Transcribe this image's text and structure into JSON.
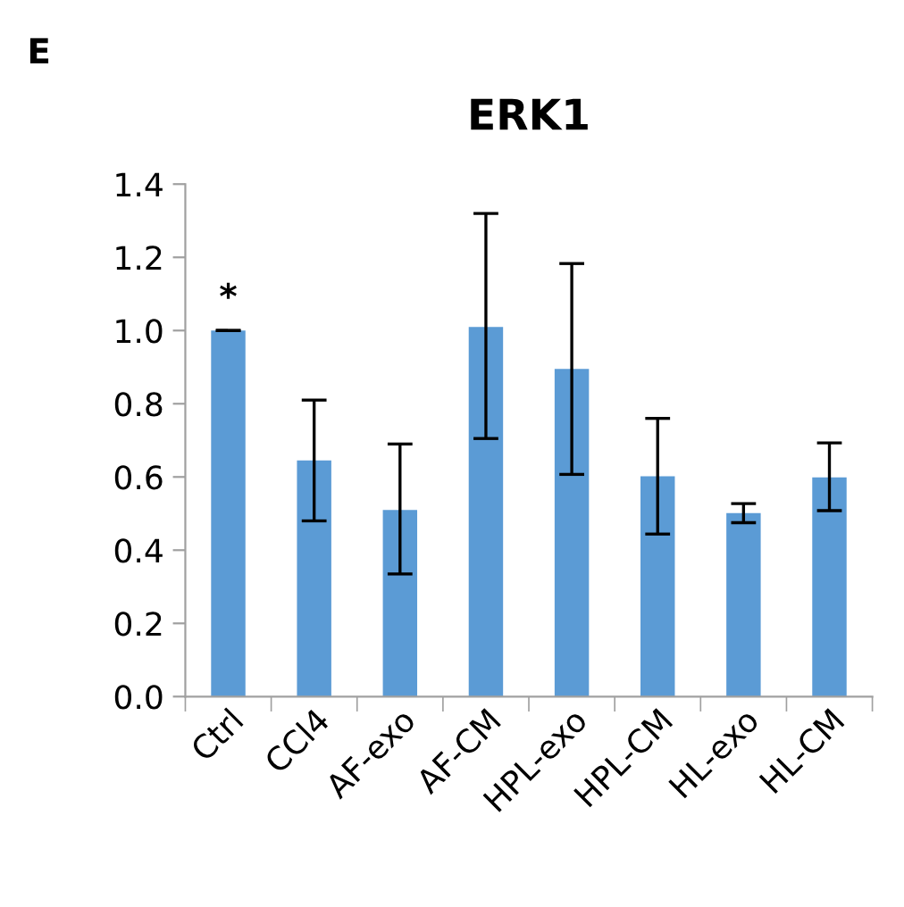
{
  "chart_data": {
    "type": "bar",
    "title": "ERK1",
    "categories": [
      "Ctrl",
      "CCl4",
      "AF-exo",
      "AF-CM",
      "HPL-exo",
      "HPL-CM",
      "HL-exo",
      "HL-CM"
    ],
    "values": [
      1.0,
      0.645,
      0.51,
      1.01,
      0.895,
      0.602,
      0.501,
      0.599
    ],
    "errors": [
      0,
      [
        0.48,
        0.81
      ],
      [
        0.335,
        0.69
      ],
      [
        0.705,
        1.32
      ],
      [
        0.607,
        1.183
      ],
      [
        0.444,
        0.76
      ],
      [
        0.475,
        0.527
      ],
      [
        0.508,
        0.693
      ]
    ],
    "color": "#5b9bd5",
    "ylim": [
      0,
      1.4
    ],
    "yticks": [
      {
        "value": 0,
        "label": "0.0"
      },
      0.2,
      0.4,
      0.6,
      0.8,
      {
        "value": 1,
        "label": "1.0"
      },
      1.2,
      1.4
    ],
    "grid": false,
    "annotations": [
      "E",
      {
        "text": "*",
        "x": "Ctrl",
        "y": 1.0
      }
    ]
  }
}
